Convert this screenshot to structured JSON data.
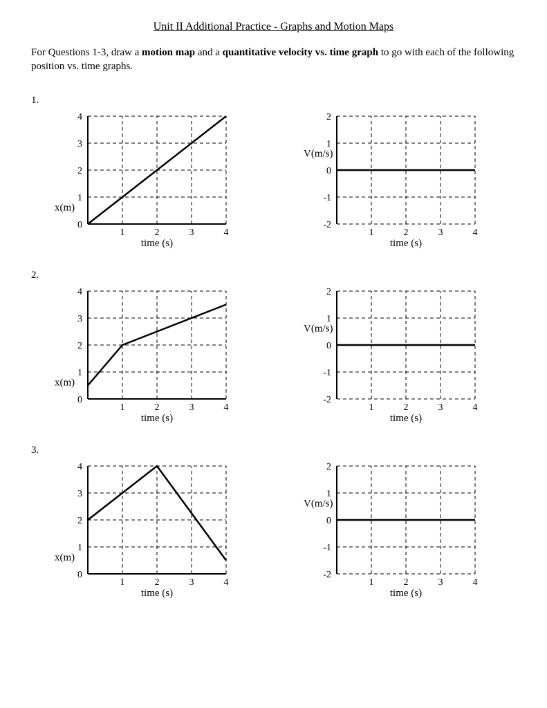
{
  "title": "Unit II Additional Practice - Graphs and Motion Maps",
  "instruction_pre": "For Questions 1-3, draw a ",
  "instruction_b1": "motion map",
  "instruction_mid": " and a ",
  "instruction_b2": "quantitative velocity vs. time graph",
  "instruction_post": " to go with each of the following position vs. time graphs.",
  "questions": [
    "1.",
    "2.",
    "3."
  ],
  "colors": {
    "axis": "#000000",
    "grid": "#000000",
    "line": "#000000",
    "bg": "#ffffff"
  },
  "fontsizes": {
    "body": 15,
    "axis_label": 15,
    "tick": 14
  },
  "charts": [
    {
      "left": {
        "type": "line",
        "ylabel": "x(m)",
        "xlabel": "time (s)",
        "xlim": [
          0,
          4
        ],
        "ylim": [
          0,
          4
        ],
        "xticks": [
          0,
          1,
          2,
          3,
          4
        ],
        "yticks": [
          0,
          1,
          2,
          3,
          4
        ],
        "line_width": 2.5,
        "series": [
          [
            0,
            0
          ],
          [
            4,
            4
          ]
        ]
      },
      "right": {
        "type": "line",
        "ylabel": "V(m/s)",
        "xlabel": "time (s)",
        "xlim": [
          0,
          4
        ],
        "ylim": [
          -2,
          2
        ],
        "xticks": [
          1,
          2,
          3,
          4
        ],
        "yticks": [
          -2,
          -1,
          0,
          1,
          2
        ],
        "line_width": 2.5,
        "series": [
          [
            0,
            0
          ],
          [
            4,
            0
          ]
        ]
      }
    },
    {
      "left": {
        "type": "line",
        "ylabel": "x(m)",
        "xlabel": "time (s)",
        "xlim": [
          0,
          4
        ],
        "ylim": [
          0,
          4
        ],
        "xticks": [
          0,
          1,
          2,
          3,
          4
        ],
        "yticks": [
          0,
          1,
          2,
          3,
          4
        ],
        "line_width": 2.5,
        "series": [
          [
            0,
            0.5
          ],
          [
            1,
            2
          ],
          [
            4,
            3.5
          ]
        ]
      },
      "right": {
        "type": "line",
        "ylabel": "V(m/s)",
        "xlabel": "time (s)",
        "xlim": [
          0,
          4
        ],
        "ylim": [
          -2,
          2
        ],
        "xticks": [
          1,
          2,
          3,
          4
        ],
        "yticks": [
          -2,
          -1,
          0,
          1,
          2
        ],
        "line_width": 2.5,
        "series": [
          [
            0,
            0
          ],
          [
            4,
            0
          ]
        ]
      }
    },
    {
      "left": {
        "type": "line",
        "ylabel": "x(m)",
        "xlabel": "time (s)",
        "xlim": [
          0,
          4
        ],
        "ylim": [
          0,
          4
        ],
        "xticks": [
          0,
          1,
          2,
          3,
          4
        ],
        "yticks": [
          0,
          1,
          2,
          3,
          4
        ],
        "line_width": 2.5,
        "series": [
          [
            0,
            2
          ],
          [
            2,
            4
          ],
          [
            4,
            0.5
          ]
        ]
      },
      "right": {
        "type": "line",
        "ylabel": "V(m/s)",
        "xlabel": "time (s)",
        "xlim": [
          0,
          4
        ],
        "ylim": [
          -2,
          2
        ],
        "xticks": [
          1,
          2,
          3,
          4
        ],
        "yticks": [
          -2,
          -1,
          0,
          1,
          2
        ],
        "line_width": 2.5,
        "series": [
          [
            0,
            0
          ],
          [
            4,
            0
          ]
        ]
      }
    }
  ]
}
